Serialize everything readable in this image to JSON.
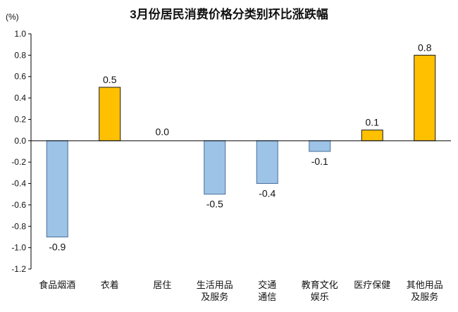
{
  "chart_data": {
    "type": "bar",
    "title": "3月份居民消费价格分类别环比涨跌幅",
    "ylabel": "(%)",
    "xlabel": "",
    "ylim": [
      -1.2,
      1.0
    ],
    "yticks": [
      1.0,
      0.8,
      0.6,
      0.4,
      0.2,
      0.0,
      -0.2,
      -0.4,
      -0.6,
      -0.8,
      -1.0,
      -1.2
    ],
    "categories": [
      [
        "食品烟酒"
      ],
      [
        "衣着"
      ],
      [
        "居住"
      ],
      [
        "生活用品",
        "及服务"
      ],
      [
        "交通",
        "通信"
      ],
      [
        "教育文化",
        "娱乐"
      ],
      [
        "医疗保健"
      ],
      [
        "其他用品",
        "及服务"
      ]
    ],
    "values": [
      -0.9,
      0.5,
      0.0,
      -0.5,
      -0.4,
      -0.1,
      0.1,
      0.8
    ],
    "value_labels": [
      "-0.9",
      "0.5",
      "0.0",
      "-0.5",
      "-0.4",
      "-0.1",
      "0.1",
      "0.8"
    ],
    "grid": false,
    "legend": "none",
    "colors": {
      "positive_fill": "#FFC000",
      "negative_fill": "#9DC3E6",
      "positive_stroke": "#1a1a1a",
      "negative_stroke": "#4A6E9A",
      "axis": "#000000",
      "text": "#111111"
    }
  }
}
